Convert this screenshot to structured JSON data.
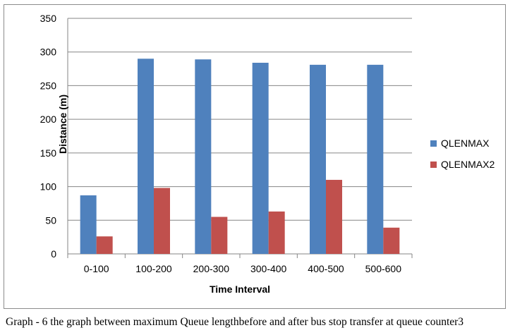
{
  "chart_data": {
    "type": "bar",
    "categories": [
      "0-100",
      "100-200",
      "200-300",
      "300-400",
      "400-500",
      "500-600"
    ],
    "series": [
      {
        "name": "QLENMAX",
        "color": "#4f81bd",
        "values": [
          87,
          290,
          289,
          284,
          281,
          281
        ]
      },
      {
        "name": "QLENMAX2",
        "color": "#c0504d",
        "values": [
          26,
          98,
          55,
          63,
          110,
          39
        ]
      }
    ],
    "xlabel": "Time Interval",
    "ylabel": "Distance (m)",
    "ylim": [
      0,
      350
    ],
    "yticks": [
      0,
      50,
      100,
      150,
      200,
      250,
      300,
      350
    ],
    "grid": true,
    "legend_position": "right"
  },
  "caption": "Graph - 6 the graph between maximum Queue lengthbefore and after bus stop transfer at queue counter3"
}
